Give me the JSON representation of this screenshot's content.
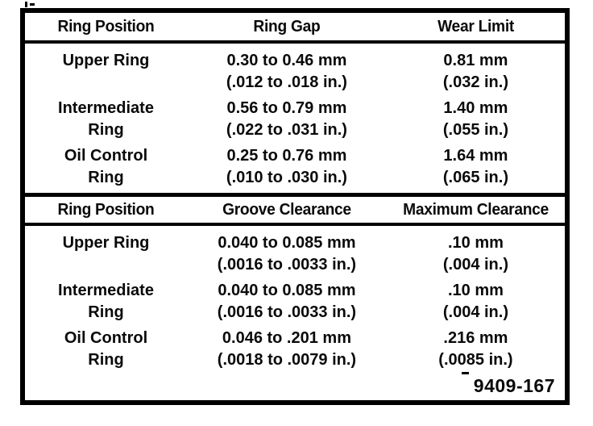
{
  "document": {
    "figure_code": "9409-167",
    "colors": {
      "ink": "#000000",
      "paper": "#ffffff"
    }
  },
  "tables": [
    {
      "headers": [
        "Ring Position",
        "Ring Gap",
        "Wear Limit"
      ],
      "rows": [
        {
          "position": [
            "Upper Ring",
            ""
          ],
          "col2": [
            "0.30 to 0.46 mm",
            "(.012 to .018 in.)"
          ],
          "col3": [
            "0.81 mm",
            "(.032 in.)"
          ]
        },
        {
          "position": [
            "Intermediate",
            "Ring"
          ],
          "col2": [
            "0.56 to 0.79 mm",
            "(.022 to .031 in.)"
          ],
          "col3": [
            "1.40 mm",
            "(.055 in.)"
          ]
        },
        {
          "position": [
            "Oil Control",
            "Ring"
          ],
          "col2": [
            "0.25 to 0.76 mm",
            "(.010 to .030 in.)"
          ],
          "col3": [
            "1.64 mm",
            "(.065 in.)"
          ]
        }
      ]
    },
    {
      "headers": [
        "Ring Position",
        "Groove Clearance",
        "Maximum Clearance"
      ],
      "rows": [
        {
          "position": [
            "Upper Ring",
            ""
          ],
          "col2": [
            "0.040 to 0.085 mm",
            "(.0016 to .0033 in.)"
          ],
          "col3": [
            ".10 mm",
            "(.004 in.)"
          ]
        },
        {
          "position": [
            "Intermediate",
            "Ring"
          ],
          "col2": [
            "0.040 to 0.085 mm",
            "(.0016 to .0033 in.)"
          ],
          "col3": [
            ".10 mm",
            "(.004 in.)"
          ]
        },
        {
          "position": [
            "Oil Control",
            "Ring"
          ],
          "col2": [
            "0.046 to .201 mm",
            "(.0018 to .0079 in.)"
          ],
          "col3": [
            ".216 mm",
            "(.0085 in.)"
          ]
        }
      ]
    }
  ]
}
